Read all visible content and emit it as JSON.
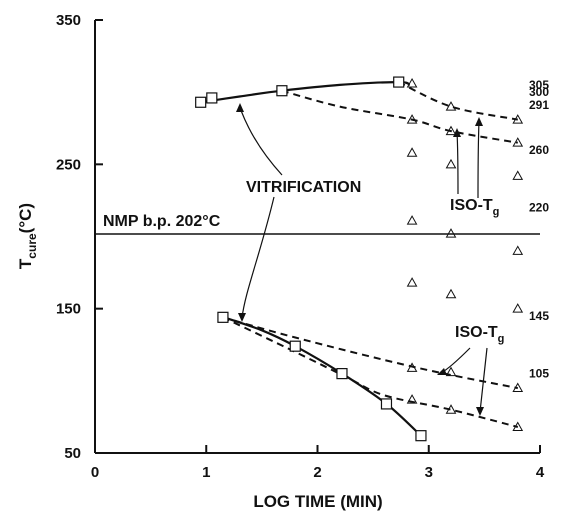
{
  "chart_data": {
    "type": "scatter",
    "title": "",
    "xlabel": "LOG TIME (MIN)",
    "ylabel_main": "T",
    "ylabel_sub": "cure",
    "ylabel_unit": "(°C)",
    "xlim": [
      0,
      4
    ],
    "ylim": [
      50,
      350
    ],
    "xticks": [
      0,
      1,
      2,
      3,
      4
    ],
    "yticks": [
      50,
      150,
      250,
      350
    ],
    "grid": false,
    "reference_line": {
      "y": 202,
      "label": "NMP b.p. 202°C"
    },
    "annotations": {
      "vitrification": "VITRIFICATION",
      "iso_tg_upper": "ISO-T",
      "iso_tg_lower": "ISO-T",
      "iso_tg_sub": "g"
    },
    "right_labels": [
      {
        "text": "305",
        "y": 305
      },
      {
        "text": "300",
        "y": 300
      },
      {
        "text": "291",
        "y": 291
      },
      {
        "text": "260",
        "y": 260
      },
      {
        "text": "220",
        "y": 220
      },
      {
        "text": "145",
        "y": 145
      },
      {
        "text": "105",
        "y": 105
      }
    ],
    "vitrification_points": [
      {
        "x": 0.95,
        "y": 293
      },
      {
        "x": 1.05,
        "y": 296
      },
      {
        "x": 1.68,
        "y": 301
      },
      {
        "x": 2.73,
        "y": 307
      },
      {
        "x": 1.15,
        "y": 144
      },
      {
        "x": 1.8,
        "y": 124
      },
      {
        "x": 2.22,
        "y": 105
      },
      {
        "x": 2.62,
        "y": 84
      },
      {
        "x": 2.93,
        "y": 62
      }
    ],
    "vitrification_curves": [
      [
        [
          0.95,
          293
        ],
        [
          1.3,
          297
        ],
        [
          1.68,
          301
        ],
        [
          2.2,
          305
        ],
        [
          2.73,
          307
        ],
        [
          2.83,
          305
        ]
      ],
      [
        [
          1.12,
          145
        ],
        [
          1.5,
          135
        ],
        [
          1.8,
          124
        ],
        [
          2.22,
          105
        ],
        [
          2.62,
          84
        ],
        [
          2.93,
          62
        ]
      ]
    ],
    "iso_tg_curves": [
      [
        [
          2.73,
          307
        ],
        [
          3.2,
          290
        ],
        [
          3.8,
          281
        ]
      ],
      [
        [
          1.68,
          301
        ],
        [
          2.2,
          290
        ],
        [
          2.85,
          281
        ],
        [
          3.2,
          273
        ],
        [
          3.8,
          265
        ]
      ],
      [
        [
          1.15,
          144
        ],
        [
          1.8,
          130
        ],
        [
          2.9,
          109
        ],
        [
          3.8,
          95
        ]
      ],
      [
        [
          1.15,
          144
        ],
        [
          1.8,
          120
        ],
        [
          2.25,
          103
        ],
        [
          2.6,
          90
        ],
        [
          3.2,
          80
        ],
        [
          3.8,
          68
        ]
      ]
    ],
    "triangle_points": [
      {
        "x": 2.85,
        "y": 306
      },
      {
        "x": 3.2,
        "y": 290
      },
      {
        "x": 3.8,
        "y": 281
      },
      {
        "x": 2.85,
        "y": 281
      },
      {
        "x": 3.2,
        "y": 273
      },
      {
        "x": 3.8,
        "y": 265
      },
      {
        "x": 2.85,
        "y": 258
      },
      {
        "x": 3.2,
        "y": 250
      },
      {
        "x": 3.8,
        "y": 242
      },
      {
        "x": 2.85,
        "y": 211
      },
      {
        "x": 3.2,
        "y": 202
      },
      {
        "x": 3.8,
        "y": 190
      },
      {
        "x": 2.85,
        "y": 168
      },
      {
        "x": 3.2,
        "y": 160
      },
      {
        "x": 3.8,
        "y": 150
      },
      {
        "x": 2.85,
        "y": 109
      },
      {
        "x": 3.2,
        "y": 106
      },
      {
        "x": 3.8,
        "y": 95
      },
      {
        "x": 2.85,
        "y": 87
      },
      {
        "x": 3.2,
        "y": 80
      },
      {
        "x": 3.8,
        "y": 68
      }
    ]
  }
}
